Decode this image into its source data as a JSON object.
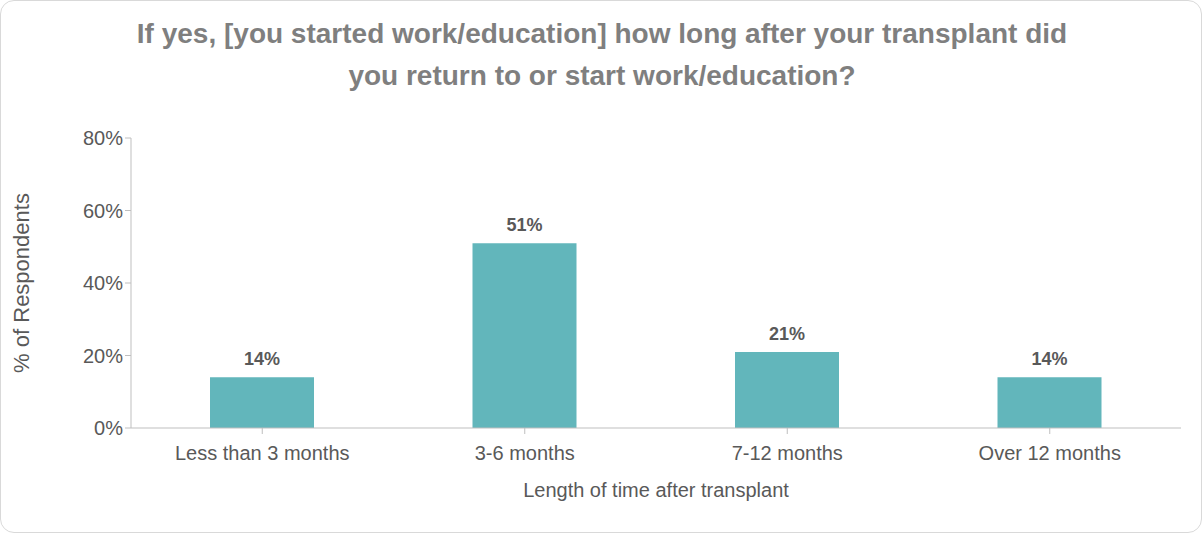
{
  "chart_data": {
    "type": "bar",
    "title": "If yes, [you started work/education] how long after your transplant did you return to or start work/education?",
    "x_label": "Length of time after transplant",
    "y_label": "% of Respondents",
    "categories": [
      "Less than 3 months",
      "3-6 months",
      "7-12 months",
      "Over 12 months"
    ],
    "values": [
      14,
      51,
      21,
      14
    ],
    "value_labels": [
      "14%",
      "51%",
      "21%",
      "14%"
    ],
    "color": "#62b6bb",
    "ylim": [
      0,
      80
    ],
    "yticks": [
      {
        "value": 0,
        "label": "0%"
      },
      {
        "value": 20,
        "label": "20%"
      },
      {
        "value": 40,
        "label": "40%"
      },
      {
        "value": 60,
        "label": "60%"
      },
      {
        "value": 80,
        "label": "80%"
      }
    ],
    "grid": false,
    "data_labels": true
  }
}
